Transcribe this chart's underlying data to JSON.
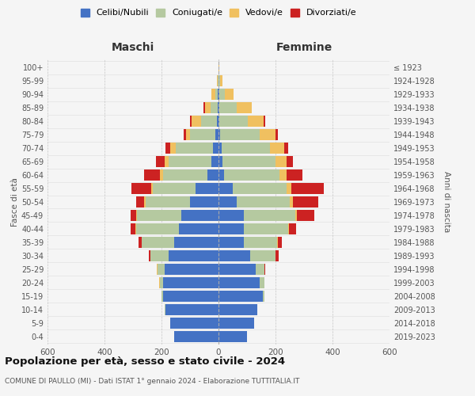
{
  "age_groups": [
    "0-4",
    "5-9",
    "10-14",
    "15-19",
    "20-24",
    "25-29",
    "30-34",
    "35-39",
    "40-44",
    "45-49",
    "50-54",
    "55-59",
    "60-64",
    "65-69",
    "70-74",
    "75-79",
    "80-84",
    "85-89",
    "90-94",
    "95-99",
    "100+"
  ],
  "birth_years": [
    "2019-2023",
    "2014-2018",
    "2009-2013",
    "2004-2008",
    "1999-2003",
    "1994-1998",
    "1989-1993",
    "1984-1988",
    "1979-1983",
    "1974-1978",
    "1969-1973",
    "1964-1968",
    "1959-1963",
    "1954-1958",
    "1949-1953",
    "1944-1948",
    "1939-1943",
    "1934-1938",
    "1929-1933",
    "1924-1928",
    "≤ 1923"
  ],
  "colors": {
    "celibi": "#4472c4",
    "coniugati": "#b5c9a0",
    "vedovi": "#f0c060",
    "divorziati": "#cc2222"
  },
  "maschi": {
    "celibi": [
      155,
      170,
      185,
      195,
      195,
      190,
      175,
      155,
      140,
      130,
      100,
      80,
      40,
      25,
      20,
      10,
      5,
      3,
      2,
      1,
      0
    ],
    "coniugati": [
      0,
      0,
      5,
      5,
      10,
      25,
      65,
      115,
      150,
      155,
      155,
      150,
      155,
      150,
      130,
      90,
      55,
      25,
      8,
      2,
      0
    ],
    "vedovi": [
      0,
      0,
      0,
      0,
      2,
      2,
      0,
      0,
      2,
      3,
      5,
      5,
      10,
      15,
      20,
      15,
      35,
      20,
      15,
      3,
      0
    ],
    "divorziati": [
      0,
      0,
      0,
      0,
      0,
      0,
      5,
      10,
      15,
      20,
      30,
      70,
      55,
      30,
      15,
      8,
      5,
      5,
      0,
      0,
      0
    ]
  },
  "femmine": {
    "celibi": [
      100,
      125,
      135,
      155,
      145,
      130,
      110,
      90,
      90,
      90,
      65,
      50,
      20,
      15,
      10,
      5,
      4,
      3,
      3,
      1,
      0
    ],
    "coniugati": [
      0,
      0,
      2,
      5,
      15,
      30,
      90,
      115,
      155,
      180,
      185,
      190,
      195,
      185,
      170,
      140,
      100,
      60,
      20,
      5,
      0
    ],
    "vedovi": [
      0,
      0,
      0,
      0,
      0,
      0,
      0,
      3,
      3,
      5,
      10,
      15,
      25,
      40,
      50,
      55,
      55,
      55,
      30,
      8,
      2
    ],
    "divorziati": [
      0,
      0,
      0,
      0,
      2,
      3,
      10,
      15,
      25,
      60,
      90,
      115,
      55,
      20,
      15,
      8,
      5,
      0,
      0,
      0,
      0
    ]
  },
  "title": "Popolazione per età, sesso e stato civile - 2024",
  "subtitle": "COMUNE DI PAULLO (MI) - Dati ISTAT 1° gennaio 2024 - Elaborazione TUTTITALIA.IT",
  "xlabel_maschi": "Maschi",
  "xlabel_femmine": "Femmine",
  "ylabel_left": "Fasce di età",
  "ylabel_right": "Anni di nascita",
  "xlim": 600,
  "background_color": "#f5f5f5",
  "legend_labels": [
    "Celibi/Nubili",
    "Coniugati/e",
    "Vedovi/e",
    "Divorziati/e"
  ]
}
